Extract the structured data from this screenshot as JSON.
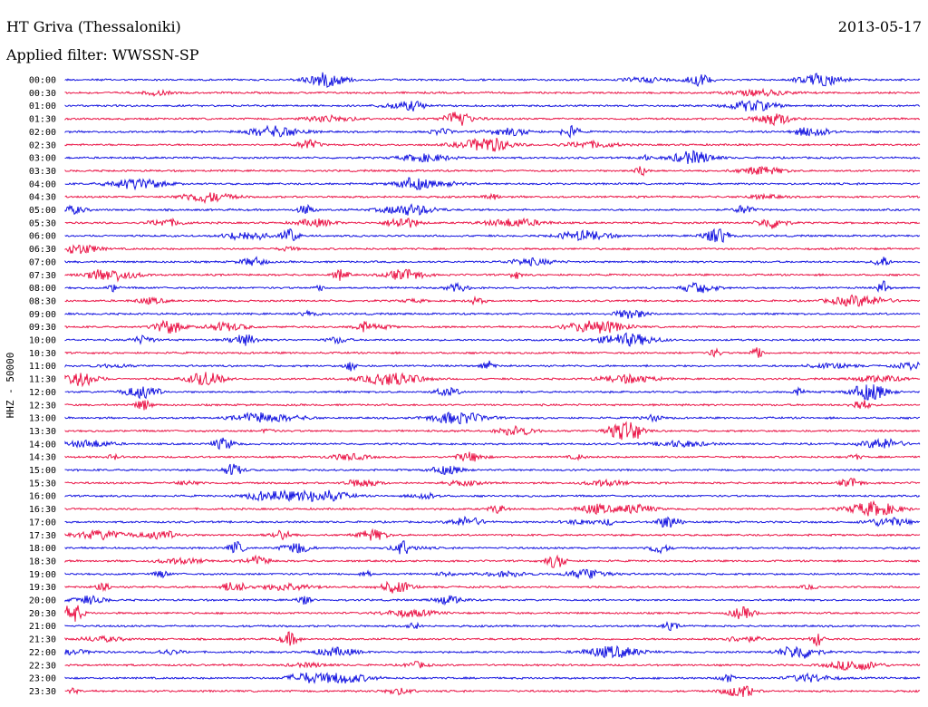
{
  "header": {
    "station": "HT Griva (Thessaloniki)",
    "date": "2013-05-17",
    "filter": "Applied filter: WWSSN-SP"
  },
  "colors": {
    "even_rows": "#1414e0",
    "odd_rows": "#ea1446"
  },
  "chart_data": {
    "type": "line",
    "title": "HT Griva (Thessaloniki)",
    "channel_label": "HHZ - 50000",
    "rows": [
      "00:00",
      "00:30",
      "01:00",
      "01:30",
      "02:00",
      "02:30",
      "03:00",
      "03:30",
      "04:00",
      "04:30",
      "05:00",
      "05:30",
      "06:00",
      "06:30",
      "07:00",
      "07:30",
      "08:00",
      "08:30",
      "09:00",
      "09:30",
      "10:00",
      "10:30",
      "11:00",
      "11:30",
      "12:00",
      "12:30",
      "13:00",
      "13:30",
      "14:00",
      "14:30",
      "15:00",
      "15:30",
      "16:00",
      "16:30",
      "17:00",
      "17:30",
      "18:00",
      "18:30",
      "19:00",
      "19:30",
      "20:00",
      "20:30",
      "21:00",
      "21:30",
      "22:00",
      "22:30",
      "23:00",
      "23:30"
    ],
    "grid": false
  }
}
